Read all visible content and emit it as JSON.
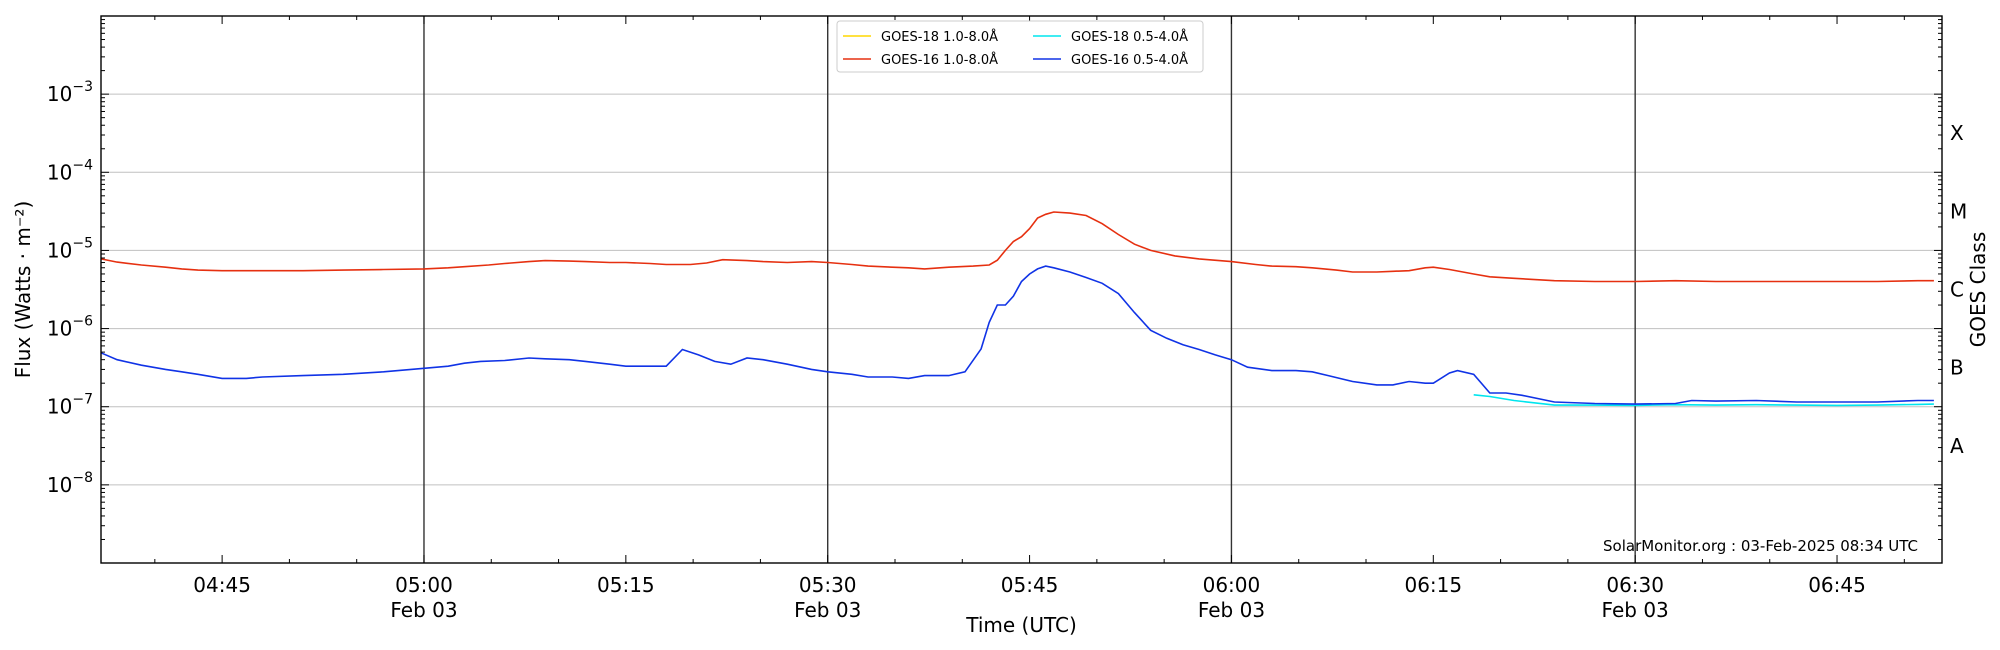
{
  "chart_data": {
    "type": "line",
    "ylabel": "Flux (Watts · m⁻²)",
    "xlabel": "Time (UTC)",
    "right_label": "GOES Class",
    "credit": "SolarMonitor.org : 03-Feb-2025 08:34 UTC",
    "y_scale": "log",
    "ylim_exp": [
      -9,
      -2
    ],
    "xlim_minutes": [
      4.6,
      6.88
    ],
    "grid": "horizontal at decades",
    "legend_position": "top-center",
    "y_ticks": [
      {
        "exp": -8,
        "base": "10",
        "sup": "−8"
      },
      {
        "exp": -7,
        "base": "10",
        "sup": "−7"
      },
      {
        "exp": -6,
        "base": "10",
        "sup": "−6"
      },
      {
        "exp": -5,
        "base": "10",
        "sup": "−5"
      },
      {
        "exp": -4,
        "base": "10",
        "sup": "−4"
      },
      {
        "exp": -3,
        "base": "10",
        "sup": "−3"
      }
    ],
    "x_ticks": [
      {
        "hour": 4.75,
        "label": "04:45",
        "sub": ""
      },
      {
        "hour": 5.0,
        "label": "05:00",
        "sub": "Feb 03"
      },
      {
        "hour": 5.25,
        "label": "05:15",
        "sub": ""
      },
      {
        "hour": 5.5,
        "label": "05:30",
        "sub": "Feb 03"
      },
      {
        "hour": 5.75,
        "label": "05:45",
        "sub": ""
      },
      {
        "hour": 6.0,
        "label": "06:00",
        "sub": "Feb 03"
      },
      {
        "hour": 6.25,
        "label": "06:15",
        "sub": ""
      },
      {
        "hour": 6.5,
        "label": "06:30",
        "sub": "Feb 03"
      },
      {
        "hour": 6.75,
        "label": "06:45",
        "sub": ""
      }
    ],
    "vlines_hours": [
      5.0,
      5.5,
      6.0,
      6.5
    ],
    "goes_classes": [
      {
        "label": "A",
        "exp": -7.5
      },
      {
        "label": "B",
        "exp": -6.5
      },
      {
        "label": "C",
        "exp": -5.5
      },
      {
        "label": "M",
        "exp": -4.5
      },
      {
        "label": "X",
        "exp": -3.5
      }
    ],
    "series": [
      {
        "name": "GOES-18 1.0-8.0Å",
        "color": "#ffd700",
        "points": []
      },
      {
        "name": "GOES-16 1.0-8.0Å",
        "color": "#e63010",
        "points": [
          [
            4.6,
            7.8e-06
          ],
          [
            4.62,
            7.1e-06
          ],
          [
            4.65,
            6.5e-06
          ],
          [
            4.68,
            6.1e-06
          ],
          [
            4.7,
            5.8e-06
          ],
          [
            4.72,
            5.6e-06
          ],
          [
            4.75,
            5.5e-06
          ],
          [
            4.8,
            5.5e-06
          ],
          [
            4.85,
            5.5e-06
          ],
          [
            4.9,
            5.6e-06
          ],
          [
            4.95,
            5.7e-06
          ],
          [
            5.0,
            5.8e-06
          ],
          [
            5.03,
            6e-06
          ],
          [
            5.05,
            6.2e-06
          ],
          [
            5.08,
            6.5e-06
          ],
          [
            5.1,
            6.8e-06
          ],
          [
            5.13,
            7.2e-06
          ],
          [
            5.15,
            7.4e-06
          ],
          [
            5.18,
            7.3e-06
          ],
          [
            5.2,
            7.2e-06
          ],
          [
            5.23,
            7e-06
          ],
          [
            5.25,
            7e-06
          ],
          [
            5.28,
            6.8e-06
          ],
          [
            5.3,
            6.6e-06
          ],
          [
            5.33,
            6.6e-06
          ],
          [
            5.35,
            6.9e-06
          ],
          [
            5.37,
            7.6e-06
          ],
          [
            5.4,
            7.4e-06
          ],
          [
            5.42,
            7.2e-06
          ],
          [
            5.45,
            7e-06
          ],
          [
            5.48,
            7.2e-06
          ],
          [
            5.5,
            7e-06
          ],
          [
            5.53,
            6.6e-06
          ],
          [
            5.55,
            6.3e-06
          ],
          [
            5.58,
            6.1e-06
          ],
          [
            5.6,
            6e-06
          ],
          [
            5.62,
            5.8e-06
          ],
          [
            5.65,
            6.1e-06
          ],
          [
            5.68,
            6.3e-06
          ],
          [
            5.7,
            6.5e-06
          ],
          [
            5.71,
            7.5e-06
          ],
          [
            5.72,
            1e-05
          ],
          [
            5.73,
            1.3e-05
          ],
          [
            5.74,
            1.5e-05
          ],
          [
            5.75,
            1.9e-05
          ],
          [
            5.76,
            2.6e-05
          ],
          [
            5.77,
            2.9e-05
          ],
          [
            5.78,
            3.1e-05
          ],
          [
            5.8,
            3e-05
          ],
          [
            5.82,
            2.8e-05
          ],
          [
            5.84,
            2.2e-05
          ],
          [
            5.86,
            1.6e-05
          ],
          [
            5.88,
            1.2e-05
          ],
          [
            5.9,
            1e-05
          ],
          [
            5.93,
            8.5e-06
          ],
          [
            5.96,
            7.8e-06
          ],
          [
            6.0,
            7.2e-06
          ],
          [
            6.03,
            6.6e-06
          ],
          [
            6.05,
            6.3e-06
          ],
          [
            6.08,
            6.2e-06
          ],
          [
            6.1,
            6e-06
          ],
          [
            6.13,
            5.6e-06
          ],
          [
            6.15,
            5.3e-06
          ],
          [
            6.18,
            5.3e-06
          ],
          [
            6.2,
            5.4e-06
          ],
          [
            6.22,
            5.5e-06
          ],
          [
            6.24,
            6e-06
          ],
          [
            6.25,
            6.1e-06
          ],
          [
            6.27,
            5.7e-06
          ],
          [
            6.3,
            5e-06
          ],
          [
            6.32,
            4.6e-06
          ],
          [
            6.35,
            4.4e-06
          ],
          [
            6.4,
            4.1e-06
          ],
          [
            6.45,
            4e-06
          ],
          [
            6.5,
            4e-06
          ],
          [
            6.55,
            4.1e-06
          ],
          [
            6.6,
            4e-06
          ],
          [
            6.65,
            4e-06
          ],
          [
            6.7,
            4e-06
          ],
          [
            6.75,
            4e-06
          ],
          [
            6.8,
            4e-06
          ],
          [
            6.85,
            4.1e-06
          ],
          [
            6.87,
            4.1e-06
          ]
        ]
      },
      {
        "name": "GOES-18 0.5-4.0Å",
        "color": "#00e5ee",
        "points": [
          [
            6.3,
            1.42e-07
          ],
          [
            6.32,
            1.35e-07
          ],
          [
            6.35,
            1.2e-07
          ],
          [
            6.4,
            1.05e-07
          ],
          [
            6.45,
            1.05e-07
          ],
          [
            6.5,
            1.04e-07
          ],
          [
            6.55,
            1.06e-07
          ],
          [
            6.6,
            1.05e-07
          ],
          [
            6.65,
            1.06e-07
          ],
          [
            6.7,
            1.05e-07
          ],
          [
            6.75,
            1.04e-07
          ],
          [
            6.8,
            1.05e-07
          ],
          [
            6.85,
            1.07e-07
          ],
          [
            6.87,
            1.08e-07
          ]
        ]
      },
      {
        "name": "GOES-16 0.5-4.0Å",
        "color": "#1033e6",
        "points": [
          [
            4.6,
            4.9e-07
          ],
          [
            4.62,
            4e-07
          ],
          [
            4.65,
            3.4e-07
          ],
          [
            4.68,
            3e-07
          ],
          [
            4.7,
            2.8e-07
          ],
          [
            4.72,
            2.6e-07
          ],
          [
            4.75,
            2.3e-07
          ],
          [
            4.78,
            2.3e-07
          ],
          [
            4.8,
            2.4e-07
          ],
          [
            4.85,
            2.5e-07
          ],
          [
            4.9,
            2.6e-07
          ],
          [
            4.95,
            2.8e-07
          ],
          [
            5.0,
            3.1e-07
          ],
          [
            5.03,
            3.3e-07
          ],
          [
            5.05,
            3.6e-07
          ],
          [
            5.07,
            3.8e-07
          ],
          [
            5.1,
            3.9e-07
          ],
          [
            5.13,
            4.2e-07
          ],
          [
            5.15,
            4.1e-07
          ],
          [
            5.18,
            4e-07
          ],
          [
            5.2,
            3.8e-07
          ],
          [
            5.23,
            3.5e-07
          ],
          [
            5.25,
            3.3e-07
          ],
          [
            5.28,
            3.3e-07
          ],
          [
            5.3,
            3.3e-07
          ],
          [
            5.32,
            5.4e-07
          ],
          [
            5.34,
            4.6e-07
          ],
          [
            5.36,
            3.8e-07
          ],
          [
            5.38,
            3.5e-07
          ],
          [
            5.4,
            4.2e-07
          ],
          [
            5.42,
            4e-07
          ],
          [
            5.45,
            3.5e-07
          ],
          [
            5.48,
            3e-07
          ],
          [
            5.5,
            2.8e-07
          ],
          [
            5.53,
            2.6e-07
          ],
          [
            5.55,
            2.4e-07
          ],
          [
            5.58,
            2.4e-07
          ],
          [
            5.6,
            2.3e-07
          ],
          [
            5.62,
            2.5e-07
          ],
          [
            5.65,
            2.5e-07
          ],
          [
            5.67,
            2.8e-07
          ],
          [
            5.69,
            5.5e-07
          ],
          [
            5.7,
            1.2e-06
          ],
          [
            5.71,
            2e-06
          ],
          [
            5.72,
            2e-06
          ],
          [
            5.73,
            2.6e-06
          ],
          [
            5.74,
            4e-06
          ],
          [
            5.75,
            5e-06
          ],
          [
            5.76,
            5.8e-06
          ],
          [
            5.77,
            6.3e-06
          ],
          [
            5.78,
            6e-06
          ],
          [
            5.8,
            5.3e-06
          ],
          [
            5.82,
            4.5e-06
          ],
          [
            5.84,
            3.8e-06
          ],
          [
            5.86,
            2.8e-06
          ],
          [
            5.88,
            1.6e-06
          ],
          [
            5.9,
            9.5e-07
          ],
          [
            5.92,
            7.5e-07
          ],
          [
            5.94,
            6.2e-07
          ],
          [
            5.96,
            5.4e-07
          ],
          [
            5.98,
            4.6e-07
          ],
          [
            6.0,
            4e-07
          ],
          [
            6.02,
            3.2e-07
          ],
          [
            6.05,
            2.9e-07
          ],
          [
            6.08,
            2.9e-07
          ],
          [
            6.1,
            2.8e-07
          ],
          [
            6.12,
            2.5e-07
          ],
          [
            6.15,
            2.1e-07
          ],
          [
            6.18,
            1.9e-07
          ],
          [
            6.2,
            1.9e-07
          ],
          [
            6.22,
            2.1e-07
          ],
          [
            6.24,
            2e-07
          ],
          [
            6.25,
            2e-07
          ],
          [
            6.27,
            2.7e-07
          ],
          [
            6.28,
            2.9e-07
          ],
          [
            6.3,
            2.6e-07
          ],
          [
            6.32,
            1.5e-07
          ],
          [
            6.34,
            1.5e-07
          ],
          [
            6.36,
            1.4e-07
          ],
          [
            6.4,
            1.15e-07
          ],
          [
            6.45,
            1.1e-07
          ],
          [
            6.5,
            1.08e-07
          ],
          [
            6.55,
            1.1e-07
          ],
          [
            6.57,
            1.2e-07
          ],
          [
            6.6,
            1.18e-07
          ],
          [
            6.65,
            1.2e-07
          ],
          [
            6.7,
            1.15e-07
          ],
          [
            6.75,
            1.15e-07
          ],
          [
            6.8,
            1.15e-07
          ],
          [
            6.85,
            1.2e-07
          ],
          [
            6.87,
            1.2e-07
          ]
        ]
      }
    ]
  }
}
